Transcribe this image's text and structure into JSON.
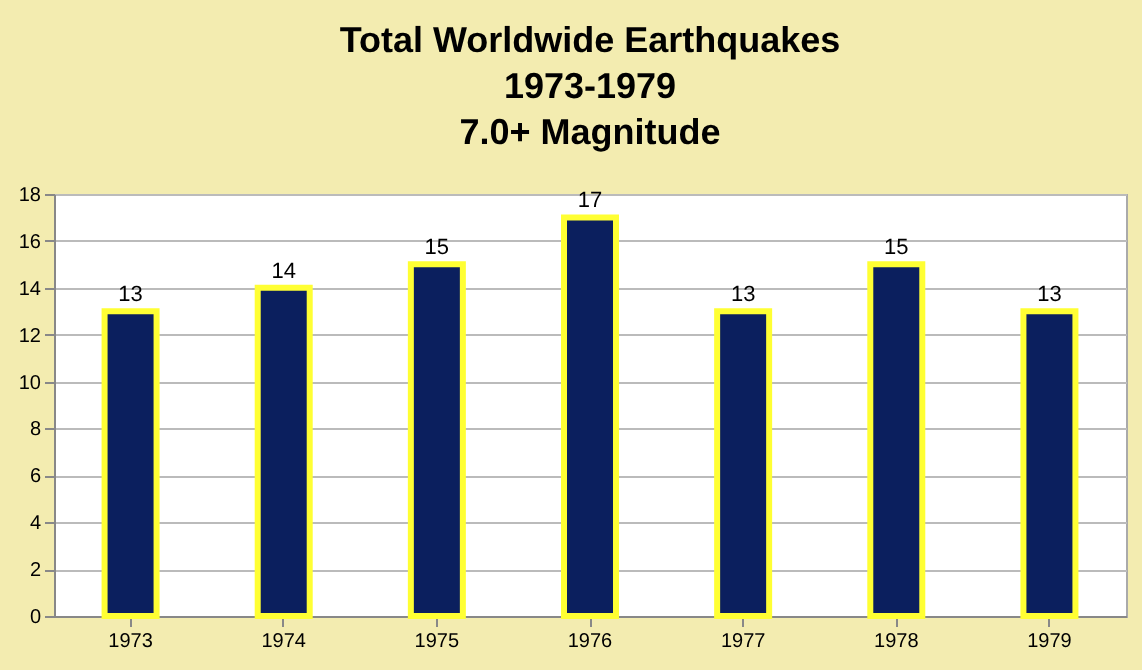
{
  "chart_data": {
    "type": "bar",
    "title": "Total Worldwide Earthquakes\n1973-1979\n7.0+ Magnitude",
    "categories": [
      "1973",
      "1974",
      "1975",
      "1976",
      "1977",
      "1978",
      "1979"
    ],
    "values": [
      13,
      14,
      15,
      17,
      13,
      15,
      13
    ],
    "color": "#0b1f5e",
    "ylim": [
      0,
      18
    ],
    "yticks": [
      0,
      2,
      4,
      6,
      8,
      10,
      12,
      14,
      16,
      18
    ],
    "grid": "y",
    "data_labels": true
  }
}
